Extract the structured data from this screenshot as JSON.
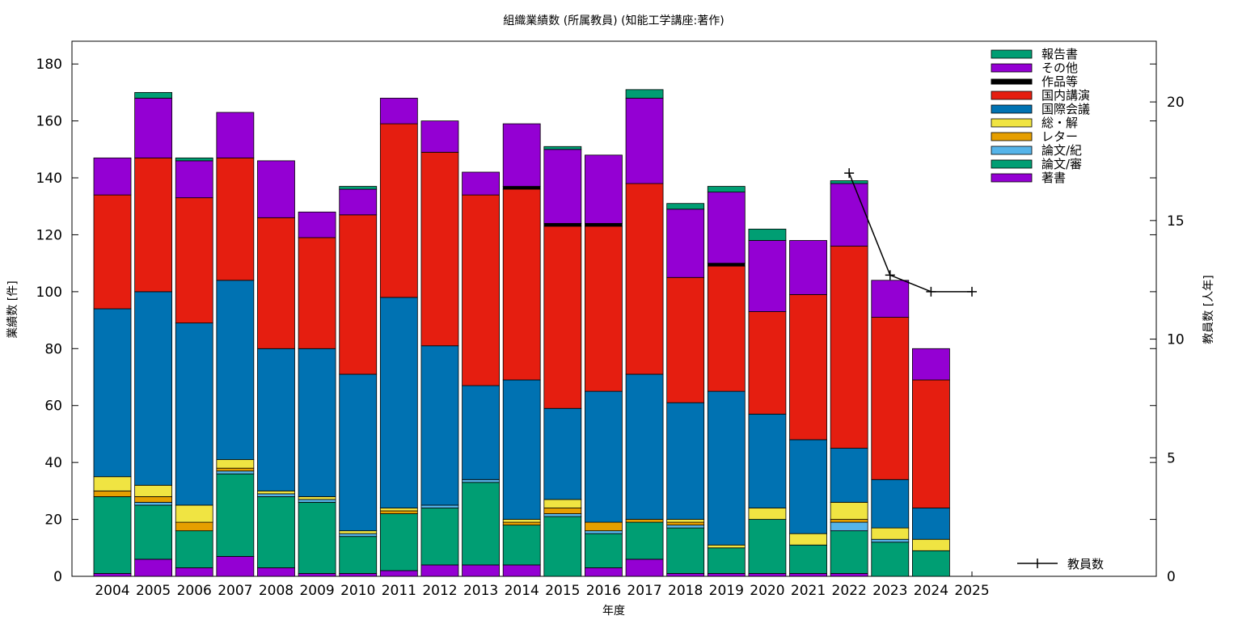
{
  "chart_data": {
    "type": "bar",
    "stacked": true,
    "title": "組織業績数 (所属教員) (知能工学講座:著作)",
    "xlabel": "年度",
    "ylabel": "業績数 [件]",
    "y2label": "教員数 [人年]",
    "ylim": [
      0,
      188
    ],
    "y2lim": [
      0,
      22.56
    ],
    "yticks": [
      0,
      20,
      40,
      60,
      80,
      100,
      120,
      140,
      160,
      180
    ],
    "y2ticks": [
      0,
      5,
      10,
      15,
      20
    ],
    "grid": false,
    "legend_position": "top-right",
    "categories": [
      "2004",
      "2005",
      "2006",
      "2007",
      "2008",
      "2009",
      "2010",
      "2011",
      "2012",
      "2013",
      "2014",
      "2015",
      "2016",
      "2017",
      "2018",
      "2019",
      "2020",
      "2021",
      "2022",
      "2023",
      "2024",
      "2025"
    ],
    "series": [
      {
        "name": "著書",
        "color": "#9400d3",
        "values": [
          1,
          6,
          3,
          7,
          3,
          1,
          1,
          2,
          4,
          4,
          4,
          0,
          3,
          6,
          1,
          1,
          1,
          1,
          1,
          0,
          0,
          0
        ]
      },
      {
        "name": "論文/審",
        "color": "#009e73",
        "values": [
          27,
          19,
          13,
          29,
          25,
          25,
          13,
          20,
          20,
          29,
          14,
          21,
          12,
          13,
          16,
          9,
          19,
          10,
          15,
          12,
          9,
          0
        ]
      },
      {
        "name": "論文/紀",
        "color": "#56b4e9",
        "values": [
          0,
          1,
          0,
          1,
          1,
          1,
          1,
          0,
          1,
          1,
          0,
          1,
          1,
          0,
          1,
          0,
          0,
          0,
          3,
          1,
          0,
          0
        ]
      },
      {
        "name": "レター",
        "color": "#e69f00",
        "values": [
          2,
          2,
          3,
          1,
          0,
          0,
          0,
          1,
          0,
          0,
          1,
          2,
          3,
          1,
          1,
          0,
          0,
          0,
          1,
          0,
          0,
          0
        ]
      },
      {
        "name": "総・解",
        "color": "#f0e442",
        "values": [
          5,
          4,
          6,
          3,
          1,
          1,
          1,
          1,
          0,
          0,
          1,
          3,
          0,
          0,
          1,
          1,
          4,
          4,
          6,
          4,
          4,
          0
        ]
      },
      {
        "name": "国際会議",
        "color": "#0072b2",
        "values": [
          59,
          68,
          64,
          63,
          50,
          52,
          55,
          74,
          56,
          33,
          49,
          32,
          46,
          51,
          41,
          54,
          33,
          33,
          19,
          17,
          11,
          0
        ]
      },
      {
        "name": "国内講演",
        "color": "#e51e10",
        "values": [
          40,
          47,
          44,
          43,
          46,
          39,
          56,
          61,
          68,
          67,
          67,
          64,
          58,
          67,
          44,
          44,
          36,
          51,
          71,
          57,
          45,
          0
        ]
      },
      {
        "name": "作品等",
        "color": "#000000",
        "values": [
          0,
          0,
          0,
          0,
          0,
          0,
          0,
          0,
          0,
          0,
          1,
          1,
          1,
          0,
          0,
          1,
          0,
          0,
          0,
          0,
          0,
          0
        ]
      },
      {
        "name": "その他",
        "color": "#9400d3",
        "values": [
          13,
          21,
          13,
          16,
          20,
          9,
          9,
          9,
          11,
          8,
          22,
          26,
          24,
          30,
          24,
          25,
          25,
          19,
          22,
          13,
          11,
          0
        ]
      },
      {
        "name": "報告書",
        "color": "#009e73",
        "values": [
          0,
          2,
          1,
          0,
          0,
          0,
          1,
          0,
          0,
          0,
          0,
          1,
          0,
          3,
          2,
          2,
          4,
          0,
          1,
          0,
          0,
          0
        ]
      }
    ],
    "line_series": {
      "name": "教員数",
      "axis": "y2",
      "color": "#000000",
      "points": [
        {
          "x": "2022",
          "y": 17.0
        },
        {
          "x": "2023",
          "y": 12.7
        },
        {
          "x": "2024",
          "y": 12.0
        },
        {
          "x": "2025",
          "y": 12.0
        }
      ]
    }
  }
}
